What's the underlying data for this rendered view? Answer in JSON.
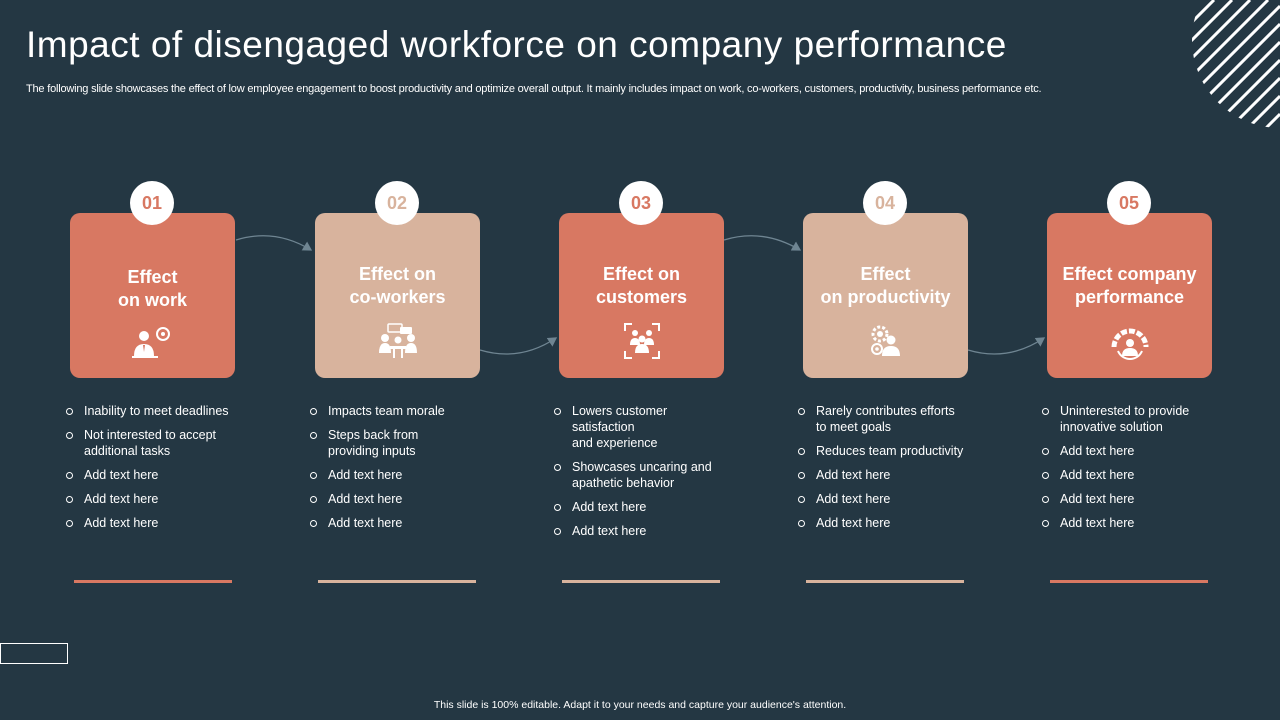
{
  "title": "Impact of disengaged workforce on company performance",
  "subtitle": "The following slide showcases the effect of low employee engagement to boost productivity and optimize overall output. It mainly includes impact on work, co-workers, customers, productivity, business performance etc.",
  "footer": "This slide is 100% editable.  Adapt it to your needs and capture your audience's attention.",
  "colors": {
    "background": "#243743",
    "accent_dark": "#d87862",
    "accent_light": "#d8b39d"
  },
  "cards": [
    {
      "number": "01",
      "title": "Effect\non work",
      "icon": "employee-settings-icon",
      "bullets": [
        "Inability to meet deadlines",
        "Not interested to accept\nadditional tasks",
        "Add text here",
        "Add text here",
        "Add text here"
      ]
    },
    {
      "number": "02",
      "title": "Effect on\nco-workers",
      "icon": "team-meeting-icon",
      "bullets": [
        "Impacts team morale",
        "Steps back from\nproviding  inputs",
        "Add text here",
        "Add text here",
        "Add text here"
      ]
    },
    {
      "number": "03",
      "title": "Effect on\ncustomers",
      "icon": "customer-group-icon",
      "bullets": [
        "Lowers customer\nsatisfaction\nand experience",
        "Showcases uncaring and\napathetic behavior",
        "Add text here",
        "Add text here"
      ]
    },
    {
      "number": "04",
      "title": "Effect\non productivity",
      "icon": "productivity-gear-icon",
      "bullets": [
        "Rarely contributes efforts\nto meet goals",
        "Reduces team productivity",
        "Add text here",
        "Add text here",
        "Add text here"
      ]
    },
    {
      "number": "05",
      "title": "Effect company\nperformance",
      "icon": "performance-gauge-icon",
      "bullets": [
        "Uninterested to provide\ninnovative  solution",
        "Add text here",
        "Add text here",
        "Add text here",
        "Add text here"
      ]
    }
  ]
}
